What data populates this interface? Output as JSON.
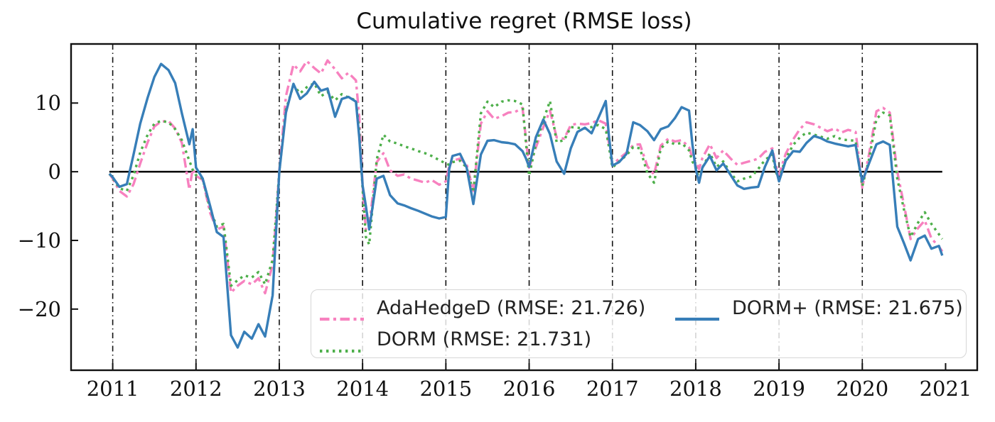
{
  "chart_data": {
    "type": "line",
    "title": "Cumulative regret (RMSE loss)",
    "xlabel": "",
    "ylabel": "",
    "xlim": [
      2010.5,
      2021.38
    ],
    "ylim": [
      -28.9,
      18.6
    ],
    "x_ticks": [
      2011,
      2012,
      2013,
      2014,
      2015,
      2016,
      2017,
      2018,
      2019,
      2020,
      2021
    ],
    "x_tick_labels": [
      "2011",
      "2012",
      "2013",
      "2014",
      "2015",
      "2016",
      "2017",
      "2018",
      "2019",
      "2020",
      "2021"
    ],
    "y_ticks": [
      10,
      0,
      -10,
      -20
    ],
    "y_tick_labels": [
      "10",
      "0",
      "−10",
      "−20"
    ],
    "grid": "vertical-year-separators",
    "year_separator_lines": [
      2011,
      2012,
      2013,
      2014,
      2015,
      2016,
      2017,
      2018,
      2019,
      2020
    ],
    "zero_line": {
      "y": 0,
      "x_start": 2010.96,
      "x_end": 2020.96,
      "color": "#000000"
    },
    "legend_position": "lower center",
    "x": [
      2010.96,
      2011.0,
      2011.08,
      2011.17,
      2011.25,
      2011.33,
      2011.42,
      2011.5,
      2011.58,
      2011.67,
      2011.75,
      2011.83,
      2011.92,
      2011.96,
      2012.0,
      2012.08,
      2012.17,
      2012.25,
      2012.33,
      2012.42,
      2012.5,
      2012.58,
      2012.67,
      2012.75,
      2012.83,
      2012.92,
      2012.96,
      2013.0,
      2013.08,
      2013.17,
      2013.25,
      2013.33,
      2013.42,
      2013.5,
      2013.58,
      2013.67,
      2013.75,
      2013.83,
      2013.92,
      2013.96,
      2014.0,
      2014.04,
      2014.08,
      2014.17,
      2014.25,
      2014.33,
      2014.42,
      2014.5,
      2014.58,
      2014.67,
      2014.75,
      2014.83,
      2014.92,
      2015.0,
      2015.04,
      2015.08,
      2015.17,
      2015.25,
      2015.33,
      2015.42,
      2015.5,
      2015.58,
      2015.67,
      2015.75,
      2015.83,
      2015.92,
      2015.96,
      2016.0,
      2016.08,
      2016.17,
      2016.25,
      2016.33,
      2016.42,
      2016.5,
      2016.58,
      2016.67,
      2016.75,
      2016.83,
      2016.92,
      2016.96,
      2017.0,
      2017.08,
      2017.17,
      2017.25,
      2017.33,
      2017.42,
      2017.5,
      2017.58,
      2017.67,
      2017.75,
      2017.83,
      2017.92,
      2017.96,
      2018.0,
      2018.04,
      2018.08,
      2018.17,
      2018.25,
      2018.33,
      2018.42,
      2018.5,
      2018.58,
      2018.67,
      2018.75,
      2018.83,
      2018.92,
      2018.96,
      2019.0,
      2019.08,
      2019.17,
      2019.25,
      2019.33,
      2019.42,
      2019.5,
      2019.58,
      2019.67,
      2019.75,
      2019.83,
      2019.92,
      2019.96,
      2020.0,
      2020.08,
      2020.17,
      2020.25,
      2020.33,
      2020.42,
      2020.5,
      2020.58,
      2020.67,
      2020.75,
      2020.83,
      2020.92,
      2020.96
    ],
    "series": [
      {
        "name": "AdaHedgeD (RMSE: 21.726)",
        "label": "AdaHedgeD",
        "rmse": 21.726,
        "color": "#f781bf",
        "line_style": "dashdot",
        "values": [
          -0.3,
          -1.0,
          -2.8,
          -3.6,
          -1.8,
          1.2,
          4.3,
          6.6,
          7.3,
          7.4,
          6.3,
          4.2,
          -2.6,
          0.4,
          -0.6,
          -1.2,
          -6.0,
          -8.4,
          -8.0,
          -17.6,
          -16.6,
          -15.9,
          -16.4,
          -15.5,
          -17.7,
          -13.5,
          -7.0,
          0.2,
          11.0,
          15.6,
          14.6,
          16.1,
          15.1,
          14.3,
          16.2,
          14.9,
          13.6,
          14.4,
          13.3,
          8.0,
          -2.0,
          -8.5,
          -7.8,
          1.4,
          2.7,
          0.2,
          -0.6,
          -0.4,
          -1.0,
          -1.3,
          -1.6,
          -1.2,
          -1.9,
          -1.4,
          0.8,
          1.6,
          1.9,
          1.1,
          -2.8,
          7.0,
          8.8,
          7.7,
          8.1,
          8.6,
          8.7,
          9.3,
          5.0,
          0.6,
          3.5,
          6.5,
          8.9,
          5.0,
          4.8,
          6.8,
          7.0,
          6.9,
          7.1,
          7.5,
          7.0,
          4.0,
          1.0,
          1.9,
          2.8,
          3.9,
          4.0,
          0.8,
          -0.4,
          3.8,
          4.8,
          4.4,
          4.6,
          3.6,
          2.0,
          1.5,
          0.4,
          2.0,
          4.0,
          2.0,
          3.1,
          1.9,
          1.0,
          1.3,
          1.6,
          1.9,
          2.9,
          3.4,
          1.0,
          -0.4,
          2.6,
          4.7,
          6.2,
          7.2,
          6.9,
          6.4,
          5.9,
          6.3,
          5.7,
          6.1,
          5.8,
          2.0,
          -2.3,
          2.5,
          8.8,
          9.3,
          8.6,
          0.0,
          -4.8,
          -9.8,
          -8.2,
          -7.1,
          -9.7,
          -10.9,
          -11.6
        ]
      },
      {
        "name": "DORM (RMSE: 21.731)",
        "label": "DORM",
        "rmse": 21.731,
        "color": "#4daf4a",
        "line_style": "dotted",
        "values": [
          -0.3,
          -0.9,
          -2.4,
          -2.8,
          -0.5,
          2.8,
          5.4,
          7.0,
          7.4,
          7.2,
          6.2,
          4.6,
          1.6,
          0.3,
          -0.5,
          -1.0,
          -5.5,
          -8.0,
          -7.6,
          -16.6,
          -15.8,
          -15.1,
          -15.4,
          -14.6,
          -16.4,
          -12.8,
          -6.5,
          0.0,
          9.0,
          12.6,
          11.4,
          12.3,
          12.9,
          11.0,
          11.6,
          10.4,
          11.3,
          10.8,
          10.4,
          6.0,
          -2.5,
          -9.5,
          -10.6,
          1.8,
          5.4,
          4.4,
          4.1,
          3.7,
          3.4,
          3.0,
          2.7,
          2.3,
          1.7,
          1.2,
          1.0,
          1.4,
          1.6,
          0.6,
          -3.0,
          8.5,
          10.2,
          9.4,
          10.2,
          10.4,
          10.3,
          9.8,
          4.5,
          -0.6,
          4.0,
          7.5,
          10.3,
          4.3,
          4.6,
          6.5,
          6.4,
          6.3,
          6.5,
          6.8,
          6.2,
          3.5,
          0.6,
          1.5,
          2.4,
          3.6,
          3.4,
          -0.2,
          -1.6,
          3.4,
          4.4,
          4.0,
          4.2,
          3.1,
          1.5,
          0.7,
          -1.1,
          0.6,
          2.7,
          0.7,
          1.5,
          -0.2,
          -1.4,
          -1.0,
          -0.7,
          0.4,
          1.7,
          2.5,
          0.0,
          -1.0,
          1.9,
          3.9,
          5.0,
          5.7,
          5.4,
          5.1,
          4.8,
          5.2,
          4.7,
          4.6,
          4.5,
          1.0,
          -2.1,
          1.8,
          7.7,
          8.6,
          8.2,
          -1.0,
          -5.5,
          -9.5,
          -7.4,
          -5.9,
          -7.6,
          -9.1,
          -9.8
        ]
      },
      {
        "name": "DORM+ (RMSE: 21.675)",
        "label": "DORM+",
        "rmse": 21.675,
        "color": "#377eb8",
        "line_style": "solid",
        "values": [
          -0.3,
          -0.8,
          -2.2,
          -1.8,
          2.5,
          7.0,
          10.8,
          13.8,
          15.7,
          14.8,
          12.9,
          8.5,
          4.0,
          6.2,
          0.6,
          -1.0,
          -5.0,
          -8.8,
          -9.5,
          -23.8,
          -25.6,
          -23.3,
          -24.3,
          -22.2,
          -24.0,
          -18.0,
          -9.0,
          0.0,
          8.6,
          12.8,
          10.6,
          11.4,
          13.1,
          11.8,
          12.1,
          8.0,
          10.6,
          10.9,
          10.2,
          5.0,
          -2.0,
          -5.0,
          -8.4,
          -1.0,
          -0.6,
          -3.4,
          -4.6,
          -4.9,
          -5.3,
          -5.7,
          -6.1,
          -6.5,
          -6.8,
          -6.6,
          0.4,
          2.3,
          2.6,
          0.6,
          -4.7,
          2.5,
          4.5,
          4.6,
          4.3,
          4.2,
          4.0,
          3.0,
          2.0,
          0.7,
          5.0,
          7.6,
          5.5,
          1.5,
          -0.3,
          3.4,
          5.8,
          6.4,
          5.6,
          7.8,
          10.3,
          5.0,
          0.9,
          1.4,
          2.6,
          7.2,
          6.8,
          5.9,
          4.6,
          6.2,
          6.6,
          7.8,
          9.4,
          8.9,
          4.0,
          0.4,
          -1.6,
          0.6,
          2.3,
          0.2,
          1.2,
          -0.5,
          -2.0,
          -2.5,
          -2.3,
          -2.2,
          0.7,
          3.1,
          0.5,
          -1.4,
          1.6,
          3.0,
          2.9,
          4.2,
          5.2,
          4.9,
          4.4,
          4.1,
          3.9,
          3.7,
          3.9,
          1.0,
          -1.4,
          1.2,
          4.0,
          4.4,
          3.9,
          -8.0,
          -10.4,
          -12.9,
          -9.8,
          -9.3,
          -11.2,
          -10.8,
          -12.2
        ]
      }
    ]
  }
}
